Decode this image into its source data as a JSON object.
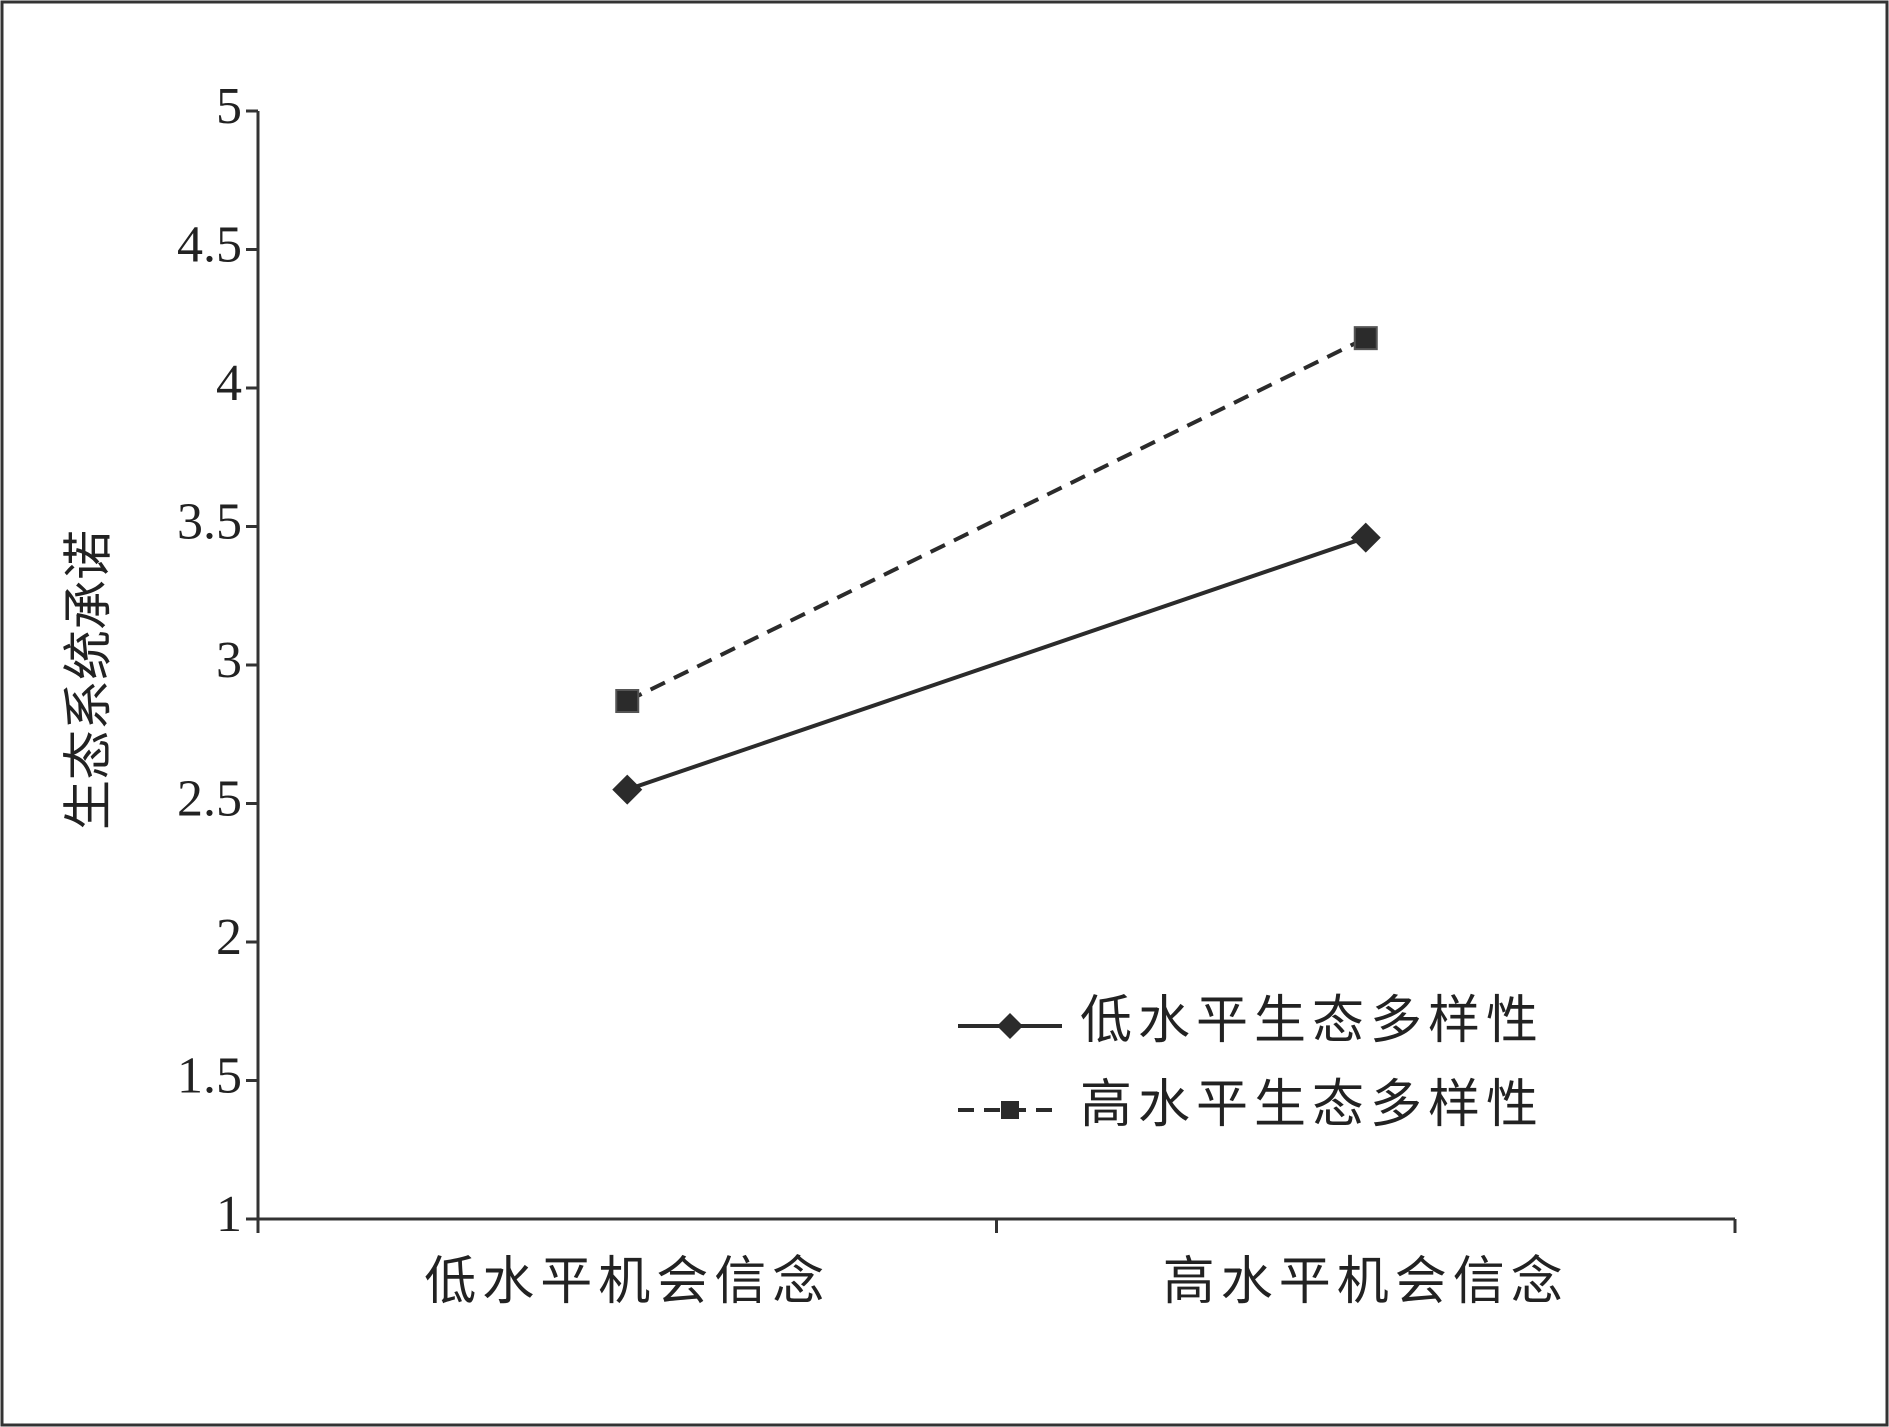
{
  "chart_data": {
    "type": "line",
    "ylabel": "生态系统承诺",
    "categories": [
      "低水平机会信念",
      "高水平机会信念"
    ],
    "series": [
      {
        "name": "低水平生态多样性",
        "color": "#2b2b2b",
        "dash": "solid",
        "marker": "diamond",
        "values": [
          2.55,
          3.46
        ]
      },
      {
        "name": "高水平生态多样性",
        "color": "#2b2b2b",
        "dash": "dashed",
        "marker": "square",
        "values": [
          2.87,
          4.18
        ]
      }
    ],
    "ylim": [
      1,
      5
    ],
    "yticks": [
      1,
      1.5,
      2,
      2.5,
      3,
      3.5,
      4,
      4.5,
      5
    ],
    "grid": false,
    "legend": "lower right"
  }
}
